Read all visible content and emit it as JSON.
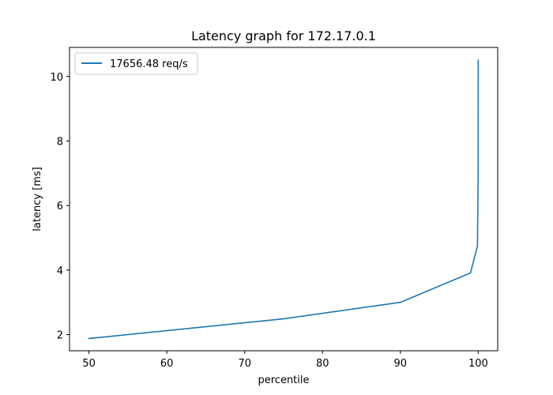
{
  "chart_data": {
    "type": "line",
    "title": "Latency graph for 172.17.0.1",
    "xlabel": "percentile",
    "ylabel": "latency [ms]",
    "xlim": [
      47.5,
      102.5
    ],
    "ylim": [
      1.5,
      10.9
    ],
    "xticks": [
      50,
      60,
      70,
      80,
      90,
      100
    ],
    "yticks": [
      2,
      4,
      6,
      8,
      10
    ],
    "xtick_labels": [
      "50",
      "60",
      "70",
      "80",
      "90",
      "100"
    ],
    "ytick_labels": [
      "2",
      "4",
      "6",
      "8",
      "10"
    ],
    "legend_position": "top-left",
    "series": [
      {
        "name": "17656.48 req/s",
        "color": "#1f77b4",
        "x": [
          50,
          75,
          90,
          99,
          99.9,
          99.99,
          99.999,
          100
        ],
        "y": [
          1.88,
          2.49,
          3.0,
          3.91,
          4.75,
          7.0,
          10.0,
          10.5
        ]
      }
    ]
  }
}
